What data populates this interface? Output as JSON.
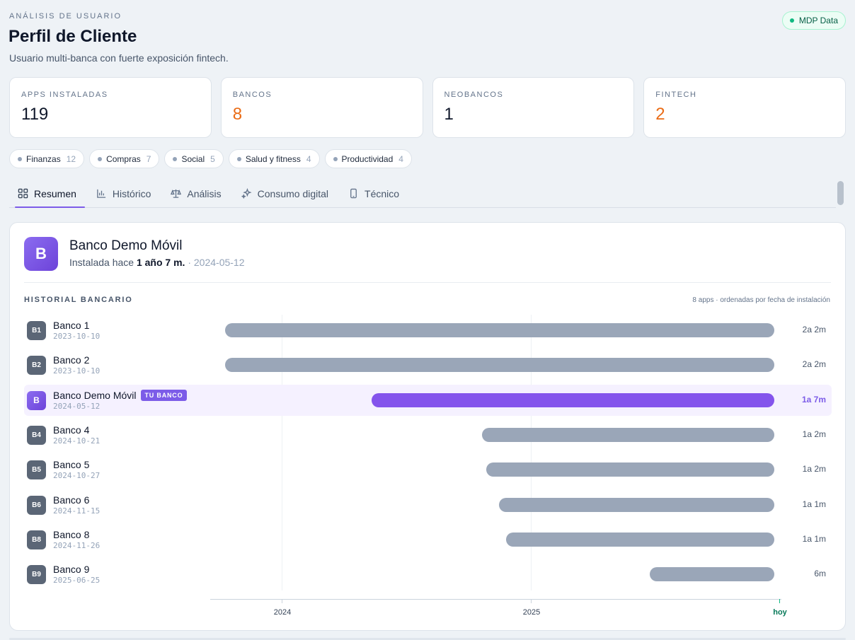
{
  "header": {
    "eyebrow": "ANÁLISIS DE USUARIO",
    "title": "Perfil de Cliente",
    "subtitle": "Usuario multi-banca con fuerte exposición fintech.",
    "badge": "MDP Data"
  },
  "stats": [
    {
      "label": "APPS INSTALADAS",
      "value": "119",
      "color": "#0f172a"
    },
    {
      "label": "BANCOS",
      "value": "8",
      "color": "#ea6c16"
    },
    {
      "label": "NEOBANCOS",
      "value": "1",
      "color": "#0f172a"
    },
    {
      "label": "FINTECH",
      "value": "2",
      "color": "#ea6c16"
    }
  ],
  "chips": [
    {
      "label": "Finanzas",
      "count": "12"
    },
    {
      "label": "Compras",
      "count": "7"
    },
    {
      "label": "Social",
      "count": "5"
    },
    {
      "label": "Salud y fitness",
      "count": "4"
    },
    {
      "label": "Productividad",
      "count": "4"
    }
  ],
  "tabs": [
    {
      "label": "Resumen",
      "icon": "grid-icon",
      "active": true
    },
    {
      "label": "Histórico",
      "icon": "bar-chart-icon",
      "active": false
    },
    {
      "label": "Análisis",
      "icon": "scale-icon",
      "active": false
    },
    {
      "label": "Consumo digital",
      "icon": "sparkles-icon",
      "active": false
    },
    {
      "label": "Técnico",
      "icon": "phone-icon",
      "active": false
    }
  ],
  "app": {
    "icon_letter": "B",
    "name": "Banco Demo Móvil",
    "meta_prefix": "Instalada hace ",
    "meta_age": "1 año 7 m.",
    "meta_sep": " · ",
    "meta_date": "2024-05-12"
  },
  "history": {
    "label": "HISTORIAL BANCARIO",
    "note": "8 apps · ordenadas por fecha de instalación",
    "tag_label": "TU BANCO",
    "axis": {
      "labels": [
        "2024",
        "2025"
      ],
      "today_label": "hoy"
    },
    "rows": [
      {
        "icon": "B1",
        "name": "Banco 1",
        "date": "2023-10-10",
        "duration": "2a 2m",
        "mine": false
      },
      {
        "icon": "B2",
        "name": "Banco 2",
        "date": "2023-10-10",
        "duration": "2a 2m",
        "mine": false
      },
      {
        "icon": "B",
        "name": "Banco Demo Móvil",
        "date": "2024-05-12",
        "duration": "1a 7m",
        "mine": true
      },
      {
        "icon": "B4",
        "name": "Banco 4",
        "date": "2024-10-21",
        "duration": "1a 2m",
        "mine": false
      },
      {
        "icon": "B5",
        "name": "Banco 5",
        "date": "2024-10-27",
        "duration": "1a 2m",
        "mine": false
      },
      {
        "icon": "B6",
        "name": "Banco 6",
        "date": "2024-11-15",
        "duration": "1a 1m",
        "mine": false
      },
      {
        "icon": "B8",
        "name": "Banco 8",
        "date": "2024-11-26",
        "duration": "1a 1m",
        "mine": false
      },
      {
        "icon": "B9",
        "name": "Banco 9",
        "date": "2025-06-25",
        "duration": "6m",
        "mine": false
      }
    ]
  }
}
